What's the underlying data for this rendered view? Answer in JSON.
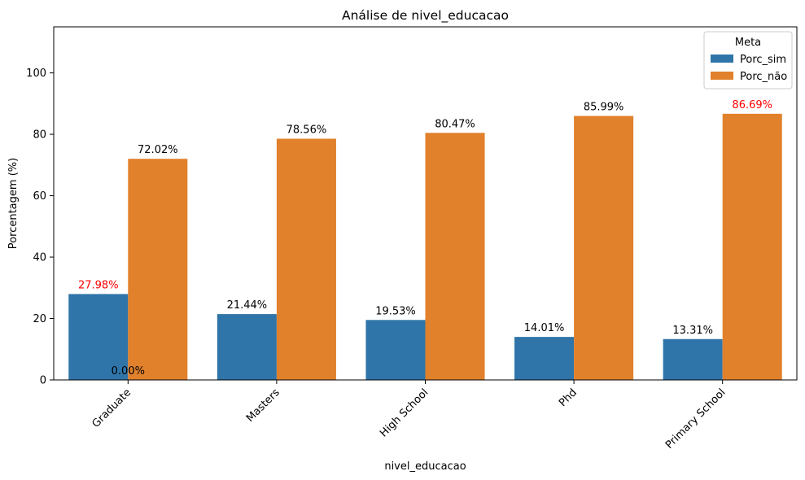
{
  "chart_data": {
    "type": "bar",
    "title": "Análise de nivel_educacao",
    "xlabel": "nivel_educacao",
    "ylabel": "Porcentagem (%)",
    "ylim": [
      0,
      115
    ],
    "yticks": [
      "0",
      "20",
      "40",
      "60",
      "80",
      "100"
    ],
    "categories": [
      "Graduate",
      "Masters",
      "High School",
      "Phd",
      "Primary School"
    ],
    "series": [
      {
        "name": "Porc_sim",
        "color": "#2f75a9",
        "values": [
          27.98,
          21.44,
          19.53,
          14.01,
          13.31
        ],
        "labels": [
          "27.98%",
          "21.44%",
          "19.53%",
          "14.01%",
          "13.31%"
        ]
      },
      {
        "name": "Porc_não",
        "color": "#e1812c",
        "values": [
          72.02,
          78.56,
          80.47,
          85.99,
          86.69
        ],
        "labels": [
          "72.02%",
          "78.56%",
          "80.47%",
          "85.99%",
          "86.69%"
        ]
      }
    ],
    "highlight": {
      "color": "#ff0000",
      "points": [
        {
          "series": 0,
          "index": 0
        },
        {
          "series": 1,
          "index": 4
        }
      ]
    },
    "extra_annotation": {
      "text": "0.00%",
      "category_index": 0,
      "value": 0
    },
    "legend": {
      "title": "Meta",
      "position": "top-right"
    },
    "grid": false
  }
}
